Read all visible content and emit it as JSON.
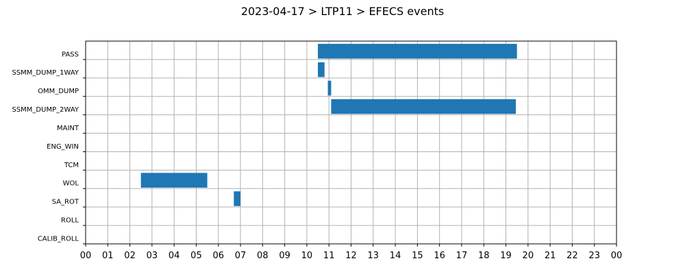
{
  "chart_data": {
    "type": "bar",
    "orientation": "horizontal-timeline",
    "title": "2023-04-17 > LTP11 > EFECS events",
    "xlabel": "",
    "ylabel": "",
    "xlim": [
      0,
      24
    ],
    "x_tick_labels": [
      "00",
      "01",
      "02",
      "03",
      "04",
      "05",
      "06",
      "07",
      "08",
      "09",
      "10",
      "11",
      "12",
      "13",
      "14",
      "15",
      "16",
      "17",
      "18",
      "19",
      "20",
      "21",
      "22",
      "23",
      "00"
    ],
    "grid": true,
    "bar_color": "#1f77b4",
    "categories": [
      "PASS",
      "SSMM_DUMP_1WAY",
      "OMM_DUMP",
      "SSMM_DUMP_2WAY",
      "MAINT",
      "ENG_WIN",
      "TCM",
      "WOL",
      "SA_ROT",
      "ROLL",
      "CALIB_ROLL"
    ],
    "events": [
      {
        "category": "PASS",
        "start": 10.5,
        "end": 19.5
      },
      {
        "category": "SSMM_DUMP_1WAY",
        "start": 10.5,
        "end": 10.8
      },
      {
        "category": "OMM_DUMP",
        "start": 10.95,
        "end": 11.1
      },
      {
        "category": "SSMM_DUMP_2WAY",
        "start": 11.1,
        "end": 19.45
      },
      {
        "category": "WOL",
        "start": 2.5,
        "end": 5.5
      },
      {
        "category": "SA_ROT",
        "start": 6.7,
        "end": 7.0
      }
    ]
  }
}
